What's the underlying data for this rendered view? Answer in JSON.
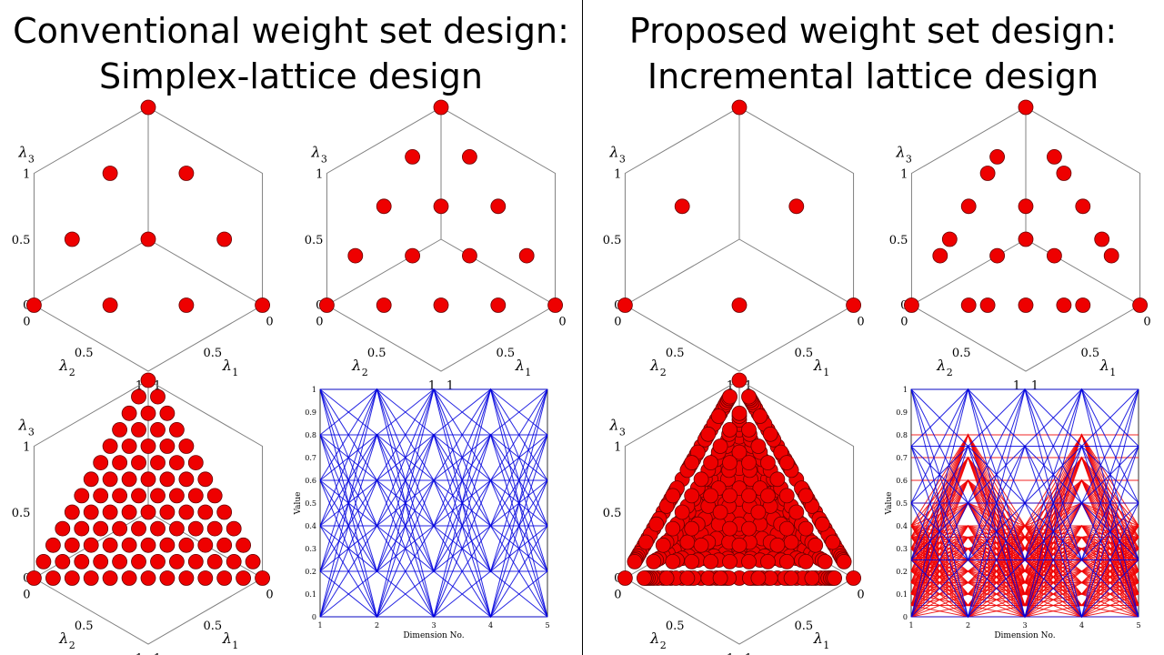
{
  "titles": {
    "left_line1": "Conventional weight set design:",
    "left_line2": "Simplex-lattice design",
    "right_line1": "Proposed weight set design:",
    "right_line2": "Incremental lattice design"
  },
  "colors": {
    "point": "#ee0000",
    "axis": "#808080",
    "line_blue": "#0000dd",
    "line_red": "#ee0000"
  },
  "ternary_labels": {
    "lambda1": "λ1",
    "lambda2": "λ2",
    "lambda3": "λ3"
  },
  "ternary_ticks": [
    "0",
    "0.5",
    "1"
  ],
  "parallel_labels": {
    "xlabel": "Dimension No.",
    "ylabel": "Value",
    "xticks": [
      "1",
      "2",
      "3",
      "4",
      "5"
    ],
    "yticks": [
      "0",
      "0.1",
      "0.2",
      "0.3",
      "0.4",
      "0.5",
      "0.6",
      "0.7",
      "0.8",
      "0.9",
      "1"
    ]
  },
  "chart_data": [
    {
      "type": "scatter",
      "panel": "simplex-lattice H=3",
      "lattice": "simplex",
      "H": 3,
      "axes": [
        "λ1",
        "λ2",
        "λ3"
      ],
      "xlim": [
        0,
        1
      ],
      "ylim": [
        0,
        1
      ],
      "zlim": [
        0,
        1
      ]
    },
    {
      "type": "scatter",
      "panel": "simplex-lattice H=4",
      "lattice": "simplex",
      "H": 4,
      "axes": [
        "λ1",
        "λ2",
        "λ3"
      ],
      "xlim": [
        0,
        1
      ],
      "ylim": [
        0,
        1
      ],
      "zlim": [
        0,
        1
      ]
    },
    {
      "type": "scatter",
      "panel": "incremental-lattice H=2",
      "lattice": "incremental",
      "H": 2,
      "axes": [
        "λ1",
        "λ2",
        "λ3"
      ],
      "xlim": [
        0,
        1
      ],
      "ylim": [
        0,
        1
      ],
      "zlim": [
        0,
        1
      ]
    },
    {
      "type": "scatter",
      "panel": "incremental-lattice H=4",
      "lattice": "incremental",
      "H": 4,
      "axes": [
        "λ1",
        "λ2",
        "λ3"
      ],
      "xlim": [
        0,
        1
      ],
      "ylim": [
        0,
        1
      ],
      "zlim": [
        0,
        1
      ]
    },
    {
      "type": "scatter",
      "panel": "simplex-lattice H=12",
      "lattice": "simplex",
      "H": 12,
      "axes": [
        "λ1",
        "λ2",
        "λ3"
      ],
      "xlim": [
        0,
        1
      ],
      "ylim": [
        0,
        1
      ],
      "zlim": [
        0,
        1
      ]
    },
    {
      "type": "line",
      "panel": "simplex parallel coordinates",
      "x": [
        1,
        2,
        3,
        4,
        5
      ],
      "xlabel": "Dimension No.",
      "ylabel": "Value",
      "ylim": [
        0,
        1
      ],
      "levels": [
        0,
        0.2,
        0.4,
        0.6,
        0.8,
        1
      ],
      "series_colors": [
        "blue"
      ]
    },
    {
      "type": "scatter",
      "panel": "incremental-lattice H=12",
      "lattice": "incremental",
      "H": 12,
      "axes": [
        "λ1",
        "λ2",
        "λ3"
      ],
      "xlim": [
        0,
        1
      ],
      "ylim": [
        0,
        1
      ],
      "zlim": [
        0,
        1
      ]
    },
    {
      "type": "line",
      "panel": "incremental parallel coordinates",
      "x": [
        1,
        2,
        3,
        4,
        5
      ],
      "xlabel": "Dimension No.",
      "ylabel": "Value",
      "ylim": [
        0,
        1
      ],
      "levels_blue": [
        0,
        0.25,
        0.5,
        0.75,
        1
      ],
      "levels_red": [
        0,
        0.05,
        0.1,
        0.15,
        0.2,
        0.25,
        0.3,
        0.35,
        0.4,
        0.5,
        0.6,
        0.7,
        0.8
      ],
      "series_colors": [
        "blue",
        "red"
      ]
    }
  ]
}
